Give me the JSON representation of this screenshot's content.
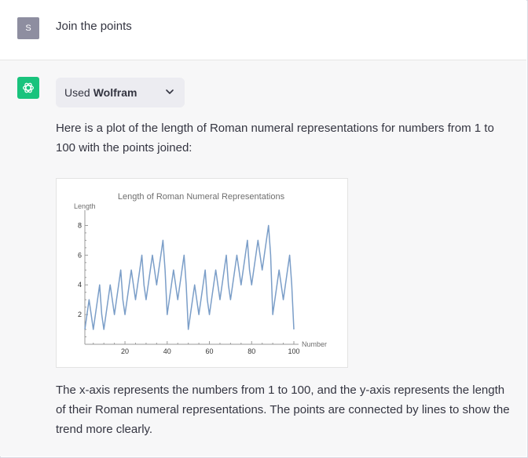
{
  "user_message": {
    "avatar_letter": "S",
    "text": "Join the points"
  },
  "assistant": {
    "plugin": {
      "used_label": "Used",
      "name": "Wolfram"
    },
    "intro_text": "Here is a plot of the length of Roman numeral representations for numbers from 1 to 100 with the points joined:",
    "outro_text": "The x-axis represents the numbers from 1 to 100, and the y-axis represents the length of their Roman numeral representations. The points are connected by lines to show the trend more clearly."
  },
  "colors": {
    "line": "#7b9ec8",
    "axis": "#9a9a9a",
    "title": "#6e6e6e",
    "gpt_green": "#19c37d"
  },
  "chart_data": {
    "type": "line",
    "title": "Length of Roman Numeral Representations",
    "xlabel": "Number",
    "ylabel": "Length",
    "xlim": [
      1,
      100
    ],
    "ylim": [
      0,
      8.5
    ],
    "xticks": [
      20,
      40,
      60,
      80,
      100
    ],
    "yticks": [
      2,
      4,
      6,
      8
    ],
    "grid": false,
    "series": [
      {
        "values": [
          1,
          2,
          3,
          2,
          1,
          2,
          3,
          4,
          2,
          1,
          2,
          3,
          4,
          3,
          2,
          3,
          4,
          5,
          3,
          2,
          3,
          4,
          5,
          4,
          3,
          4,
          5,
          6,
          4,
          3,
          4,
          5,
          6,
          5,
          4,
          5,
          6,
          7,
          5,
          2,
          3,
          4,
          5,
          4,
          3,
          4,
          5,
          6,
          4,
          1,
          2,
          3,
          4,
          3,
          2,
          3,
          4,
          5,
          3,
          2,
          3,
          4,
          5,
          4,
          3,
          4,
          5,
          6,
          4,
          3,
          4,
          5,
          6,
          5,
          4,
          5,
          6,
          7,
          5,
          4,
          5,
          6,
          7,
          6,
          5,
          6,
          7,
          8,
          6,
          2,
          3,
          4,
          5,
          4,
          3,
          4,
          5,
          6,
          4,
          1
        ]
      }
    ]
  }
}
